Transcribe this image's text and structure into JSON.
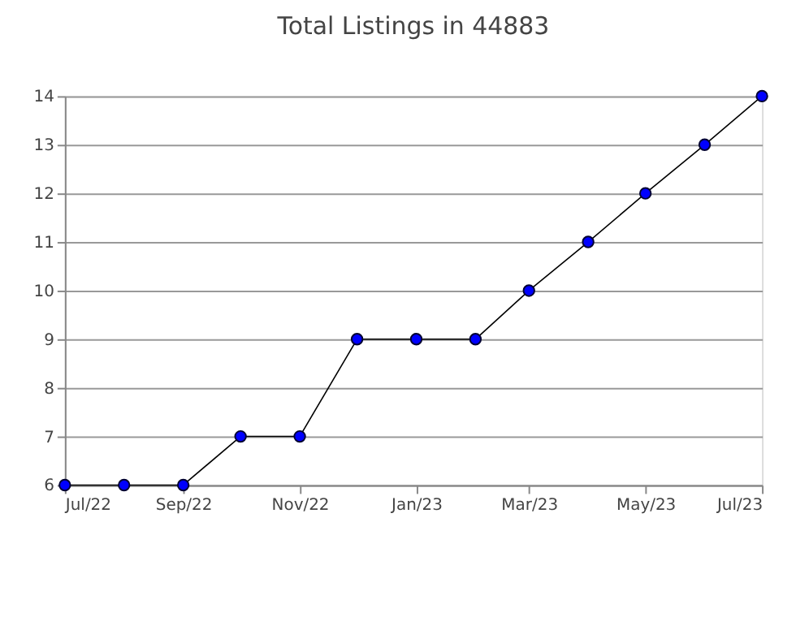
{
  "chart_data": {
    "type": "line",
    "title": "Total Listings in 44883",
    "x": [
      "2022-07",
      "2022-08",
      "2022-09",
      "2022-10",
      "2022-11",
      "2022-12",
      "2023-01",
      "2023-02",
      "2023-03",
      "2023-04",
      "2023-05",
      "2023-06",
      "2023-07"
    ],
    "series": [
      {
        "color": "#0000ff",
        "values": [
          6,
          6,
          6,
          7,
          7,
          9,
          9,
          9,
          10,
          11,
          12,
          13,
          14
        ]
      }
    ],
    "xlim": [
      "2022-07",
      "2023-07"
    ],
    "xticks": [
      {
        "value": "2022-07",
        "label": "Jul/22"
      },
      {
        "value": "2022-09",
        "label": "Sep/22"
      },
      {
        "value": "2022-11",
        "label": "Nov/22"
      },
      {
        "value": "2023-01",
        "label": "Jan/23"
      },
      {
        "value": "2023-03",
        "label": "Mar/23"
      },
      {
        "value": "2023-05",
        "label": "May/23"
      },
      {
        "value": "2023-07",
        "label": "Jul/23"
      }
    ],
    "ylim": [
      6,
      14
    ],
    "yticks": [
      6,
      7,
      8,
      9,
      10,
      11,
      12,
      13,
      14
    ],
    "grid": "y",
    "marker": "circle",
    "line_style": "solid"
  }
}
